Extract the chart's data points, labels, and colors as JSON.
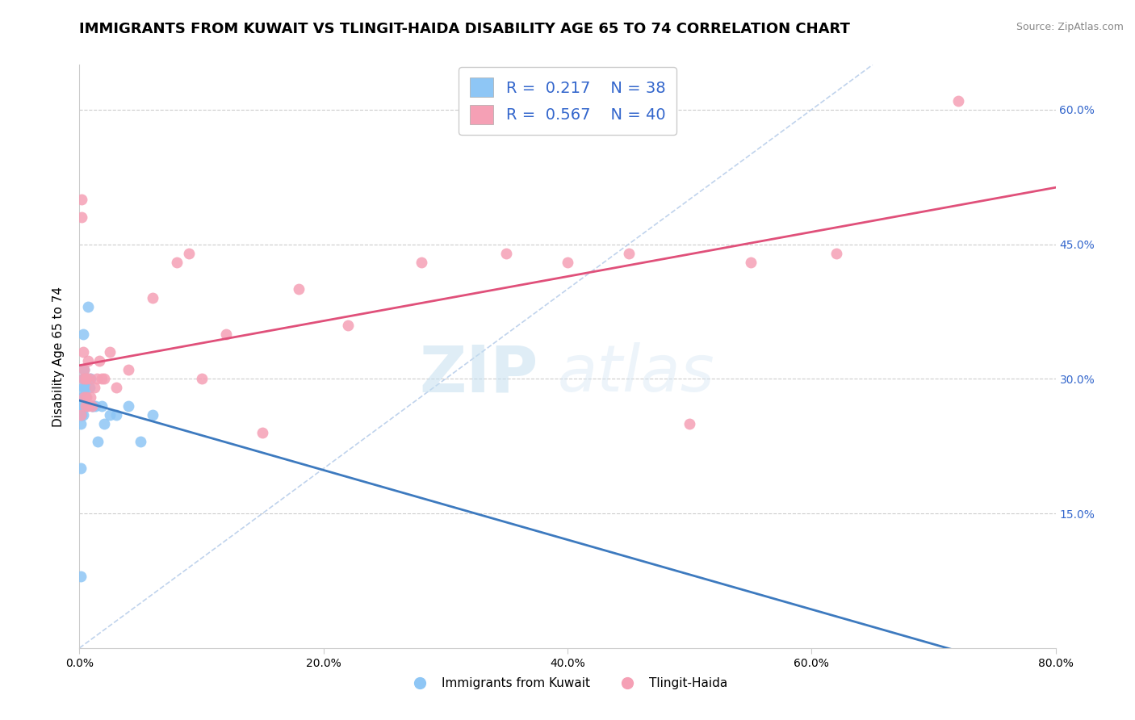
{
  "title": "IMMIGRANTS FROM KUWAIT VS TLINGIT-HAIDA DISABILITY AGE 65 TO 74 CORRELATION CHART",
  "source": "Source: ZipAtlas.com",
  "ylabel": "Disability Age 65 to 74",
  "xlim": [
    0.0,
    0.8
  ],
  "ylim": [
    0.0,
    0.65
  ],
  "xticks": [
    0.0,
    0.2,
    0.4,
    0.6,
    0.8
  ],
  "yticks": [
    0.15,
    0.3,
    0.45,
    0.6
  ],
  "background_color": "#ffffff",
  "grid_color": "#cccccc",
  "series1_name": "Immigrants from Kuwait",
  "series1_color": "#8ec6f5",
  "series1_line_color": "#3d7abf",
  "series1_R": 0.217,
  "series1_N": 38,
  "series2_name": "Tlingit-Haida",
  "series2_color": "#f5a0b5",
  "series2_line_color": "#e0507a",
  "series2_R": 0.567,
  "series2_N": 40,
  "series1_x": [
    0.001,
    0.001,
    0.001,
    0.002,
    0.002,
    0.002,
    0.002,
    0.003,
    0.003,
    0.003,
    0.003,
    0.003,
    0.003,
    0.004,
    0.004,
    0.004,
    0.004,
    0.004,
    0.005,
    0.005,
    0.005,
    0.005,
    0.006,
    0.006,
    0.007,
    0.008,
    0.009,
    0.01,
    0.011,
    0.013,
    0.015,
    0.018,
    0.02,
    0.025,
    0.03,
    0.04,
    0.05,
    0.06
  ],
  "series1_y": [
    0.08,
    0.2,
    0.25,
    0.26,
    0.27,
    0.27,
    0.28,
    0.26,
    0.27,
    0.28,
    0.29,
    0.3,
    0.35,
    0.27,
    0.28,
    0.29,
    0.3,
    0.31,
    0.27,
    0.28,
    0.29,
    0.3,
    0.27,
    0.3,
    0.38,
    0.29,
    0.3,
    0.27,
    0.27,
    0.27,
    0.23,
    0.27,
    0.25,
    0.26,
    0.26,
    0.27,
    0.23,
    0.26
  ],
  "series2_x": [
    0.001,
    0.002,
    0.002,
    0.003,
    0.003,
    0.004,
    0.004,
    0.005,
    0.005,
    0.006,
    0.006,
    0.007,
    0.007,
    0.008,
    0.009,
    0.01,
    0.012,
    0.014,
    0.016,
    0.018,
    0.02,
    0.025,
    0.03,
    0.04,
    0.06,
    0.08,
    0.09,
    0.1,
    0.12,
    0.15,
    0.18,
    0.22,
    0.28,
    0.35,
    0.4,
    0.45,
    0.5,
    0.55,
    0.62,
    0.72
  ],
  "series2_y": [
    0.26,
    0.5,
    0.48,
    0.3,
    0.33,
    0.28,
    0.31,
    0.3,
    0.27,
    0.28,
    0.3,
    0.27,
    0.32,
    0.3,
    0.28,
    0.27,
    0.29,
    0.3,
    0.32,
    0.3,
    0.3,
    0.33,
    0.29,
    0.31,
    0.39,
    0.43,
    0.44,
    0.3,
    0.35,
    0.24,
    0.4,
    0.36,
    0.43,
    0.44,
    0.43,
    0.44,
    0.25,
    0.43,
    0.44,
    0.61
  ],
  "watermark_zip": "ZIP",
  "watermark_atlas": "atlas",
  "legend_color": "#3366cc",
  "right_tick_color": "#3366cc",
  "title_fontsize": 13,
  "axis_label_fontsize": 11,
  "tick_fontsize": 10,
  "legend_fontsize": 14
}
